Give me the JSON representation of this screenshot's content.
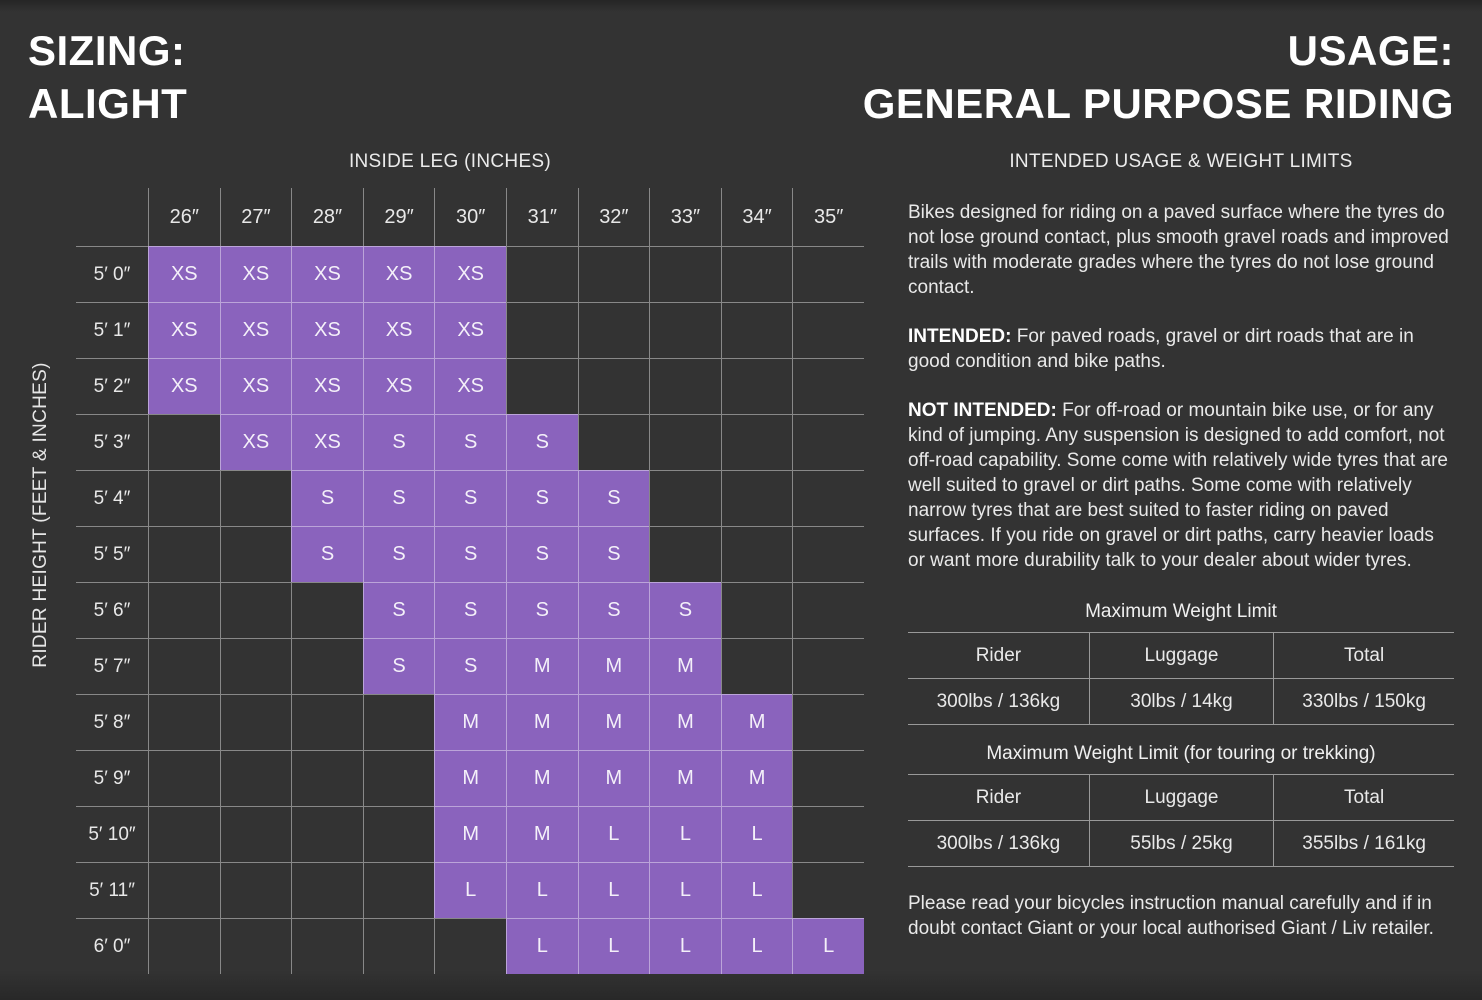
{
  "colors": {
    "background": "#333333",
    "cell_purple": "#8a63bd"
  },
  "sizing": {
    "title": "SIZING:\nALIGHT",
    "inside_leg_axis_label": "INSIDE LEG (INCHES)",
    "rider_height_axis_label": "RIDER HEIGHT (FEET & INCHES)",
    "columns": [
      "26″",
      "27″",
      "28″",
      "29″",
      "30″",
      "31″",
      "32″",
      "33″",
      "34″",
      "35″"
    ],
    "rows": [
      {
        "label": "5′ 0″",
        "cells": [
          "XS",
          "XS",
          "XS",
          "XS",
          "XS",
          "",
          "",
          "",
          "",
          ""
        ]
      },
      {
        "label": "5′ 1″",
        "cells": [
          "XS",
          "XS",
          "XS",
          "XS",
          "XS",
          "",
          "",
          "",
          "",
          ""
        ]
      },
      {
        "label": "5′ 2″",
        "cells": [
          "XS",
          "XS",
          "XS",
          "XS",
          "XS",
          "",
          "",
          "",
          "",
          ""
        ]
      },
      {
        "label": "5′ 3″",
        "cells": [
          "",
          "XS",
          "XS",
          "S",
          "S",
          "S",
          "",
          "",
          "",
          ""
        ]
      },
      {
        "label": "5′ 4″",
        "cells": [
          "",
          "",
          "S",
          "S",
          "S",
          "S",
          "S",
          "",
          "",
          ""
        ]
      },
      {
        "label": "5′ 5″",
        "cells": [
          "",
          "",
          "S",
          "S",
          "S",
          "S",
          "S",
          "",
          "",
          ""
        ]
      },
      {
        "label": "5′ 6″",
        "cells": [
          "",
          "",
          "",
          "S",
          "S",
          "S",
          "S",
          "S",
          "",
          ""
        ]
      },
      {
        "label": "5′ 7″",
        "cells": [
          "",
          "",
          "",
          "S",
          "S",
          "M",
          "M",
          "M",
          "",
          ""
        ]
      },
      {
        "label": "5′ 8″",
        "cells": [
          "",
          "",
          "",
          "",
          "M",
          "M",
          "M",
          "M",
          "M",
          ""
        ]
      },
      {
        "label": "5′ 9″",
        "cells": [
          "",
          "",
          "",
          "",
          "M",
          "M",
          "M",
          "M",
          "M",
          ""
        ]
      },
      {
        "label": "5′ 10″",
        "cells": [
          "",
          "",
          "",
          "",
          "M",
          "M",
          "L",
          "L",
          "L",
          ""
        ]
      },
      {
        "label": "5′ 11″",
        "cells": [
          "",
          "",
          "",
          "",
          "L",
          "L",
          "L",
          "L",
          "L",
          ""
        ]
      },
      {
        "label": "6′ 0″",
        "cells": [
          "",
          "",
          "",
          "",
          "",
          "L",
          "L",
          "L",
          "L",
          "L"
        ]
      }
    ]
  },
  "usage": {
    "title": "USAGE:\nGENERAL PURPOSE RIDING",
    "subheader": "INTENDED USAGE & WEIGHT LIMITS",
    "intro": "Bikes designed for  riding on a paved surface where the tyres do not lose ground contact, plus smooth gravel roads and improved trails with moderate grades where the tyres do not lose ground contact.",
    "intended_label": "INTENDED:",
    "intended_text": " For paved roads, gravel or dirt roads that are in good condition and bike paths.",
    "not_intended_label": "NOT INTENDED:",
    "not_intended_text": " For off-road or mountain bike use, or for any kind of jumping. Any suspension is designed to add comfort, not off-road capability. Some come with relatively wide tyres that are well suited to gravel or dirt paths. Some come with relatively narrow tyres that are best suited to faster riding on paved surfaces. If you ride on gravel or dirt paths, carry heavier loads or want more durability talk to your dealer about wider tyres.",
    "tables": [
      {
        "title": "Maximum Weight Limit",
        "headers": [
          "Rider",
          "Luggage",
          "Total"
        ],
        "values": [
          "300lbs / 136kg",
          "30lbs / 14kg",
          "330lbs / 150kg"
        ]
      },
      {
        "title": "Maximum Weight Limit (for touring or trekking)",
        "headers": [
          "Rider",
          "Luggage",
          "Total"
        ],
        "values": [
          "300lbs / 136kg",
          "55lbs / 25kg",
          "355lbs / 161kg"
        ]
      }
    ],
    "footer": "Please read your bicycles instruction manual carefully and if in doubt contact Giant or your local authorised Giant / Liv retailer."
  }
}
